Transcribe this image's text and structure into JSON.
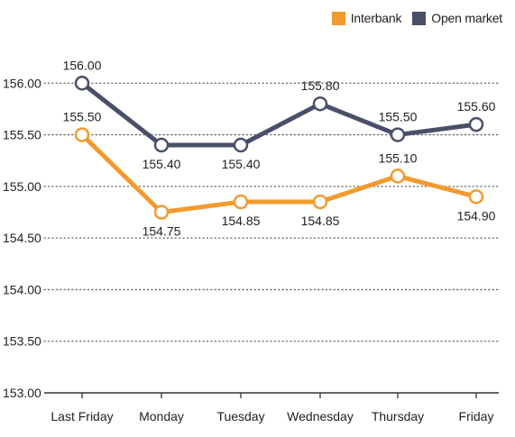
{
  "chart_data": {
    "type": "line",
    "categories": [
      "Last Friday",
      "Monday",
      "Tuesday",
      "Wednesday",
      "Thursday",
      "Friday"
    ],
    "series": [
      {
        "name": "Interbank",
        "color": "#F29A2E",
        "values": [
          155.5,
          154.75,
          154.85,
          154.85,
          155.1,
          154.9
        ],
        "labels": [
          "155.50",
          "154.75",
          "154.85",
          "154.85",
          "155.10",
          "154.90"
        ],
        "label_positions": [
          "above",
          "below",
          "below",
          "below",
          "above",
          "below"
        ]
      },
      {
        "name": "Open market",
        "color": "#4A4F69",
        "values": [
          156.0,
          155.4,
          155.4,
          155.8,
          155.5,
          155.6
        ],
        "labels": [
          "156.00",
          "155.40",
          "155.40",
          "155.80",
          "155.50",
          "155.60"
        ],
        "label_positions": [
          "above",
          "below",
          "below",
          "above",
          "above",
          "above"
        ]
      }
    ],
    "ylim": [
      153.0,
      156.5
    ],
    "yticks": [
      "153.00",
      "153.50",
      "154.00",
      "154.50",
      "155.00",
      "155.50",
      "156.00"
    ],
    "ytick_values": [
      153.0,
      153.5,
      154.0,
      154.5,
      155.0,
      155.5,
      156.0
    ],
    "grid": true,
    "grid_style": "dotted",
    "legend_position": "top-right",
    "title": "",
    "xlabel": "",
    "ylabel": ""
  }
}
